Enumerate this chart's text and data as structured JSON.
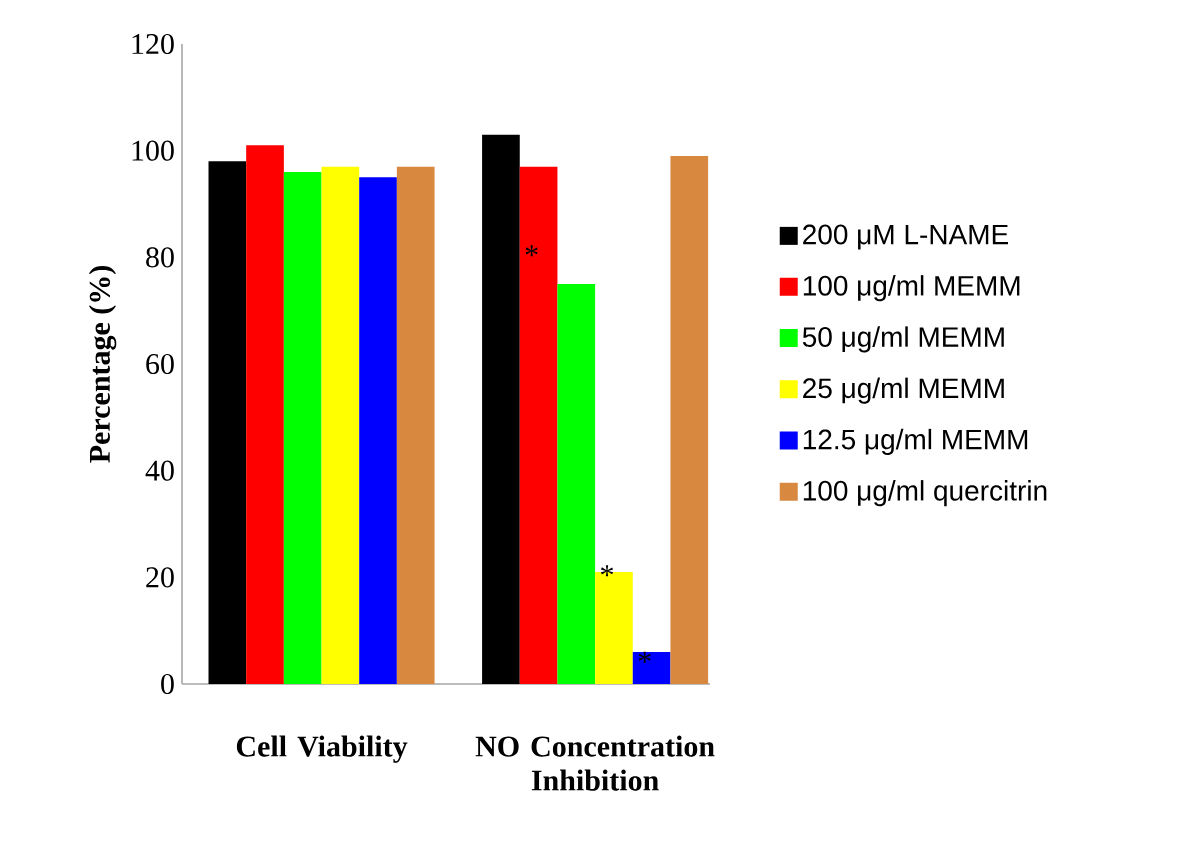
{
  "chart_data": {
    "type": "bar",
    "ylabel": "Percentage (%)",
    "categories": [
      "Cell Viability",
      "NO Concentration Inhibition"
    ],
    "series": [
      {
        "name": "200 μM L-NAME",
        "color": "#000000",
        "values": [
          98,
          103
        ]
      },
      {
        "name": "100 μg/ml MEMM",
        "color": "#ff0000",
        "values": [
          101,
          97
        ]
      },
      {
        "name": "50 μg/ml MEMM",
        "color": "#00ff00",
        "values": [
          96,
          75
        ]
      },
      {
        "name": "25 μg/ml MEMM",
        "color": "#ffff00",
        "values": [
          97,
          21
        ]
      },
      {
        "name": "12.5 μg/ml MEMM",
        "color": "#0000ff",
        "values": [
          95,
          6
        ]
      },
      {
        "name": "100 μg/ml quercitrin",
        "color": "#d98840",
        "values": [
          97,
          99
        ]
      }
    ],
    "ylim": [
      0,
      120
    ],
    "yticks": [
      0,
      20,
      40,
      60,
      80,
      100,
      120
    ],
    "legend": "right",
    "annotations": [
      "*",
      "*",
      "*"
    ]
  }
}
